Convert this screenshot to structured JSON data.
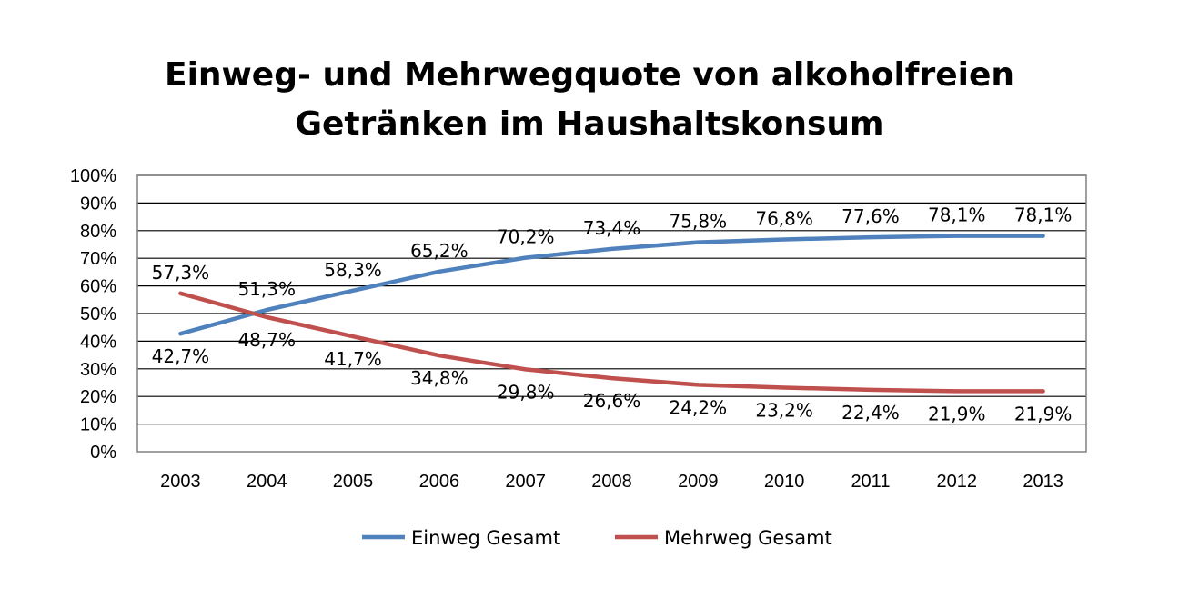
{
  "chart_data": {
    "type": "line",
    "title": "Einweg- und Mehrwegquote von alkoholfreien Getränken im Haushaltskonsum",
    "title_lines": [
      "Einweg- und Mehrwegquote von alkoholfreien",
      "Getränken im Haushaltskonsum"
    ],
    "categories": [
      "2003",
      "2004",
      "2005",
      "2006",
      "2007",
      "2008",
      "2009",
      "2010",
      "2011",
      "2012",
      "2013"
    ],
    "yticks": [
      "0%",
      "10%",
      "20%",
      "30%",
      "40%",
      "50%",
      "60%",
      "70%",
      "80%",
      "90%",
      "100%"
    ],
    "ylim": [
      0,
      100
    ],
    "grid": true,
    "legend_position": "bottom",
    "series": [
      {
        "name": "Einweg Gesamt",
        "color": "#4F81BD",
        "values": [
          42.7,
          51.3,
          58.3,
          65.2,
          70.2,
          73.4,
          75.8,
          76.8,
          77.6,
          78.1,
          78.1
        ],
        "labels": [
          "42,7%",
          "51,3%",
          "58,3%",
          "65,2%",
          "70,2%",
          "73,4%",
          "75,8%",
          "76,8%",
          "77,6%",
          "78,1%",
          "78,1%"
        ]
      },
      {
        "name": "Mehrweg Gesamt",
        "color": "#C0504D",
        "values": [
          57.3,
          48.7,
          41.7,
          34.8,
          29.8,
          26.6,
          24.2,
          23.2,
          22.4,
          21.9,
          21.9
        ],
        "labels": [
          "57,3%",
          "48,7%",
          "41,7%",
          "34,8%",
          "29,8%",
          "26,6%",
          "24,2%",
          "23,2%",
          "22,4%",
          "21,9%",
          "21,9%"
        ]
      }
    ]
  }
}
